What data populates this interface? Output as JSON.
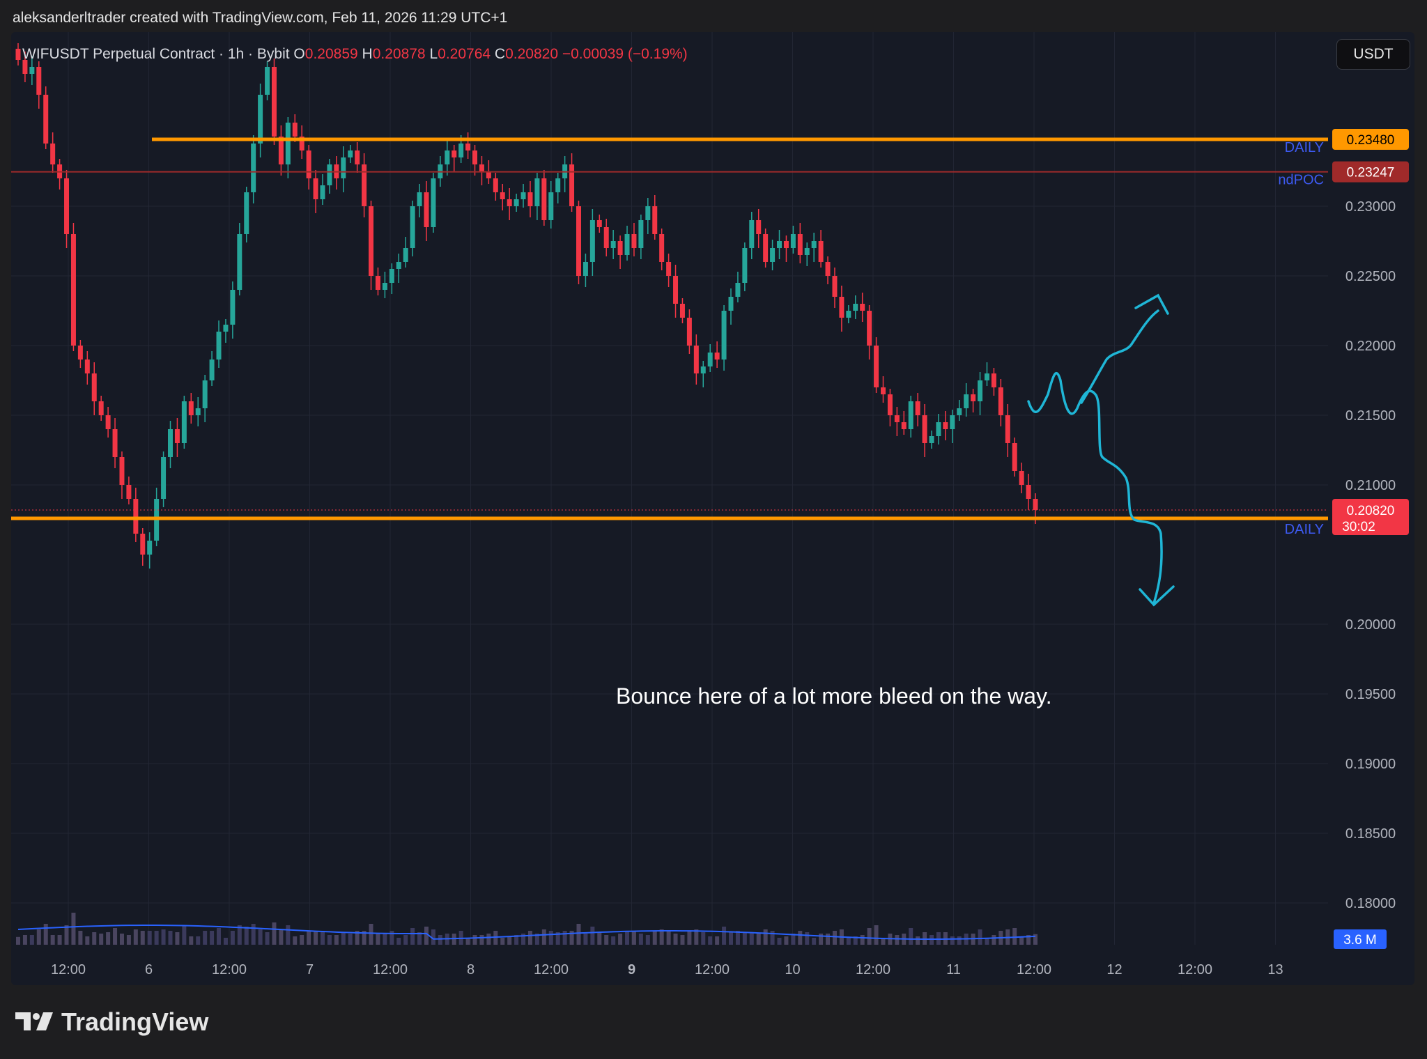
{
  "header": {
    "credit": "aleksanderltrader created with TradingView.com, Feb 11, 2026 11:29 UTC+1"
  },
  "legend": {
    "symbol": "WIFUSDT Perpetual Contract · 1h · Bybit",
    "open_label": "O",
    "open": "0.20859",
    "high_label": "H",
    "high": "0.20878",
    "low_label": "L",
    "low": "0.20764",
    "close_label": "C",
    "close": "0.20820",
    "change": "−0.00039 (−0.19%)"
  },
  "currency": "USDT",
  "brand": {
    "name": "TradingView"
  },
  "colors": {
    "up": "#26a69a",
    "down": "#f23645",
    "level": "#ff9800",
    "poc": "#a02a2a",
    "drawing": "#1fb6d6",
    "label_blue": "#3d5af1"
  },
  "chart_data": {
    "type": "candlestick",
    "y_ticks": [
      "0.23000",
      "0.22500",
      "0.22000",
      "0.21500",
      "0.21000",
      "0.20000",
      "0.19500",
      "0.19000",
      "0.18500",
      "0.18000"
    ],
    "ylim": [
      0.177,
      0.2425
    ],
    "x_ticks": [
      "12:00",
      "6",
      "12:00",
      "7",
      "12:00",
      "8",
      "12:00",
      "9",
      "12:00",
      "10",
      "12:00",
      "11",
      "12:00",
      "12",
      "12:00",
      "13"
    ],
    "horizontal_levels": [
      {
        "name": "DAILY",
        "value": 0.2348,
        "label": "0.23480",
        "color": "#ff9800"
      },
      {
        "name": "ndPOC",
        "value": 0.23247,
        "label": "0.23247",
        "color": "#a02a2a"
      },
      {
        "name": "DAILY",
        "value": 0.2076,
        "label": "0.20760",
        "color": "#ff9800"
      }
    ],
    "last_price": {
      "value": 0.2082,
      "label": "0.20820",
      "countdown": "30:02"
    },
    "volume_label": "3.6 M",
    "annotation": "Bounce here of a lot more bleed on the way.",
    "closes": [
      0.2405,
      0.2395,
      0.24,
      0.238,
      0.2345,
      0.233,
      0.232,
      0.228,
      0.22,
      0.219,
      0.218,
      0.216,
      0.215,
      0.214,
      0.212,
      0.21,
      0.209,
      0.2065,
      0.205,
      0.206,
      0.209,
      0.212,
      0.214,
      0.213,
      0.216,
      0.215,
      0.2155,
      0.2175,
      0.219,
      0.221,
      0.2215,
      0.224,
      0.228,
      0.231,
      0.2345,
      0.238,
      0.24,
      0.235,
      0.233,
      0.236,
      0.235,
      0.234,
      0.232,
      0.2305,
      0.2315,
      0.233,
      0.232,
      0.2335,
      0.234,
      0.233,
      0.23,
      0.225,
      0.224,
      0.2245,
      0.2255,
      0.226,
      0.227,
      0.23,
      0.231,
      0.2285,
      0.232,
      0.233,
      0.234,
      0.2335,
      0.2345,
      0.234,
      0.233,
      0.2325,
      0.232,
      0.231,
      0.2305,
      0.23,
      0.2305,
      0.231,
      0.23,
      0.232,
      0.229,
      0.231,
      0.232,
      0.233,
      0.23,
      0.225,
      0.226,
      0.229,
      0.2285,
      0.227,
      0.2275,
      0.2265,
      0.228,
      0.227,
      0.229,
      0.23,
      0.228,
      0.226,
      0.225,
      0.223,
      0.222,
      0.22,
      0.218,
      0.2185,
      0.2195,
      0.219,
      0.2225,
      0.2235,
      0.2245,
      0.227,
      0.229,
      0.228,
      0.226,
      0.227,
      0.2275,
      0.227,
      0.228,
      0.2265,
      0.227,
      0.2275,
      0.226,
      0.225,
      0.2235,
      0.222,
      0.2225,
      0.223,
      0.2225,
      0.22,
      0.217,
      0.2165,
      0.215,
      0.2145,
      0.214,
      0.216,
      0.215,
      0.213,
      0.2135,
      0.2145,
      0.214,
      0.215,
      0.2155,
      0.2165,
      0.216,
      0.2175,
      0.218,
      0.217,
      0.215,
      0.213,
      0.211,
      0.21,
      0.209,
      0.2082
    ]
  }
}
